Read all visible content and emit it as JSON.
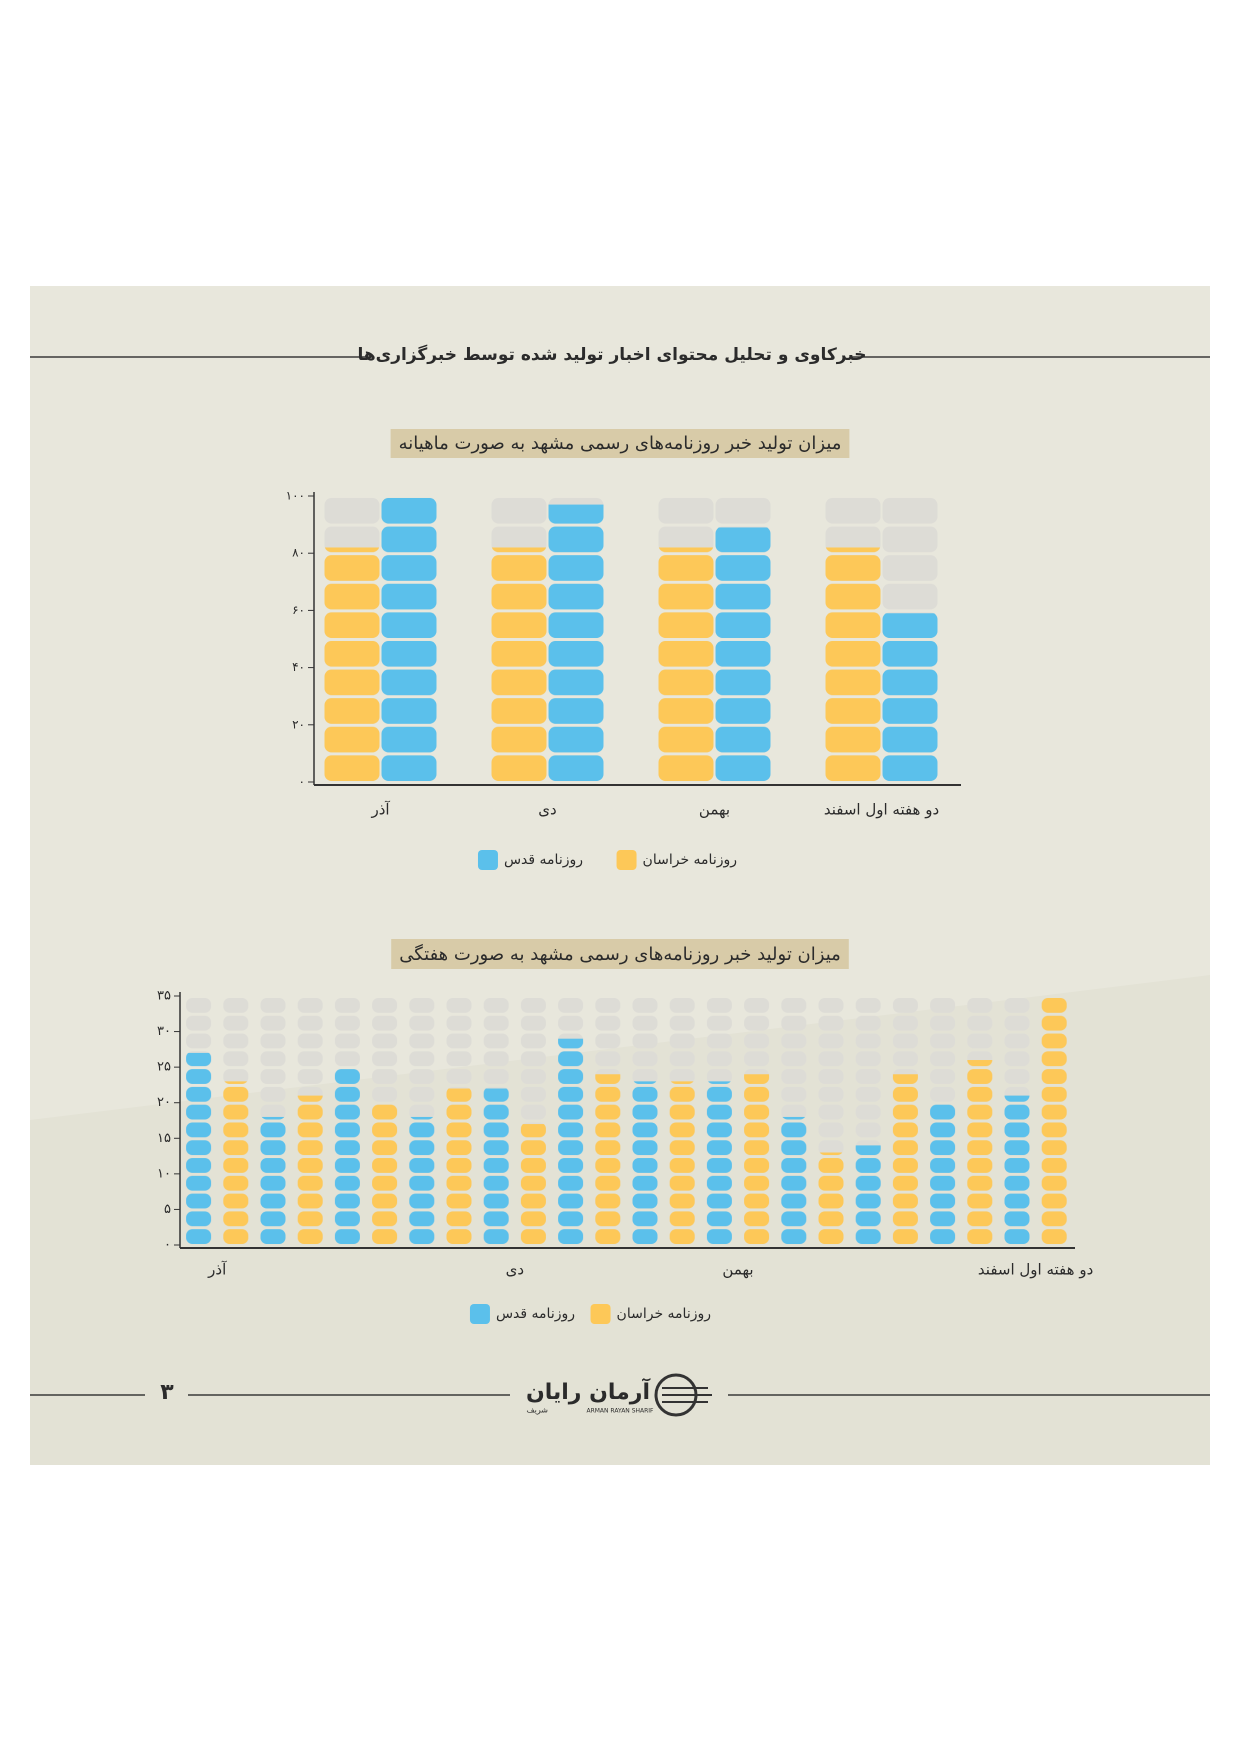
{
  "header": {
    "title": "خبرکاوی و تحلیل محتوای اخبار تولید شده توسط خبرگزاری‌ها"
  },
  "page_number": "۳",
  "logo": {
    "name": "آرمان رایان",
    "subname": "شریف",
    "latin": "ARMAN RAYAN SHARIF"
  },
  "chart_data": [
    {
      "type": "bar",
      "title": "میزان تولید خبر روزنامه‌های رسمی مشهد به صورت ماهیانه",
      "categories": [
        "آذر",
        "دی",
        "بهمن",
        "دو هفته اول اسفند"
      ],
      "series": [
        {
          "name": "روزنامه خراسان",
          "color": "#fdc858",
          "values": [
            82,
            82,
            82,
            82
          ]
        },
        {
          "name": "روزنامه قدس",
          "color": "#5bc0eb",
          "values": [
            100,
            97,
            89,
            59
          ]
        }
      ],
      "ylim": [
        0,
        100
      ],
      "yticks": [
        {
          "value": 0,
          "label": "۰"
        },
        {
          "value": 20,
          "label": "۲۰"
        },
        {
          "value": 40,
          "label": "۴۰"
        },
        {
          "value": 60,
          "label": "۶۰"
        },
        {
          "value": 80,
          "label": "۸۰"
        },
        {
          "value": 100,
          "label": "۱۰۰"
        }
      ]
    },
    {
      "type": "bar",
      "title": "میزان تولید خبر روزنامه‌های رسمی مشهد به صورت هفتگی",
      "categories": [
        "آذر",
        null,
        null,
        null,
        "دی",
        null,
        null,
        "بهمن",
        null,
        null,
        null,
        "دو هفته اول اسفند"
      ],
      "series": [
        {
          "name": "روزنامه خراسان",
          "color": "#fdc858",
          "values": [
            23,
            21,
            20,
            22,
            17,
            24,
            23,
            24,
            13,
            24,
            26,
            35
          ]
        },
        {
          "name": "روزنامه قدس",
          "color": "#5bc0eb",
          "values": [
            27,
            18,
            25,
            18,
            22,
            29,
            23,
            23,
            18,
            14,
            20,
            21
          ]
        }
      ],
      "ylim": [
        0,
        35
      ],
      "yticks": [
        {
          "value": 0,
          "label": "۰"
        },
        {
          "value": 5,
          "label": "۵"
        },
        {
          "value": 10,
          "label": "۱۰"
        },
        {
          "value": 15,
          "label": "۱۵"
        },
        {
          "value": 20,
          "label": "۲۰"
        },
        {
          "value": 25,
          "label": "۲۵"
        },
        {
          "value": 30,
          "label": "۳۰"
        },
        {
          "value": 35,
          "label": "۳۵"
        }
      ]
    }
  ]
}
